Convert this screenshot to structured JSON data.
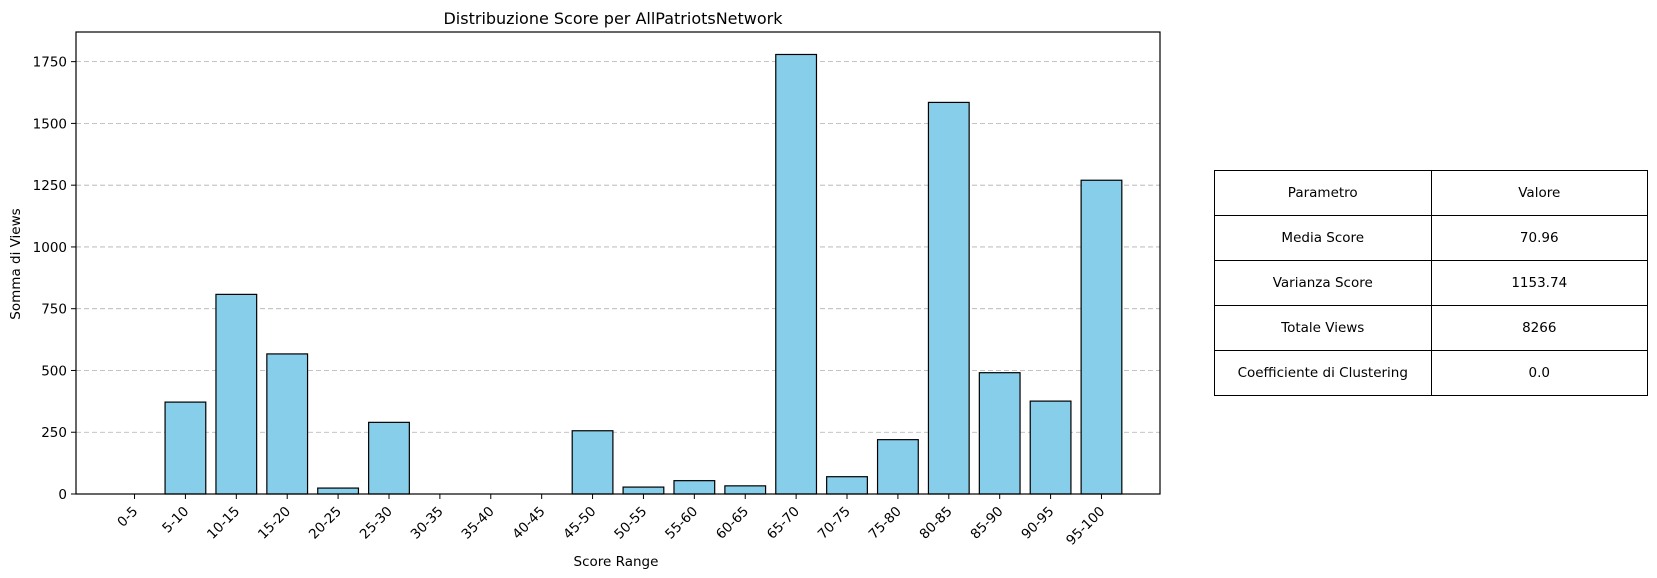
{
  "chart_data": {
    "type": "bar",
    "title": "Distribuzione Score per AllPatriotsNetwork",
    "xlabel": "Score Range",
    "ylabel": "Somma di Views",
    "categories": [
      "0-5",
      "5-10",
      "10-15",
      "15-20",
      "20-25",
      "25-30",
      "30-35",
      "35-40",
      "40-45",
      "45-50",
      "50-55",
      "55-60",
      "60-65",
      "65-70",
      "70-75",
      "75-80",
      "80-85",
      "85-90",
      "90-95",
      "95-100"
    ],
    "values": [
      0,
      372,
      808,
      567,
      24,
      290,
      0,
      0,
      0,
      256,
      28,
      54,
      33,
      1779,
      70,
      220,
      1585,
      491,
      376,
      1270
    ],
    "ylim": [
      0,
      1870
    ],
    "yticks": [
      0,
      250,
      500,
      750,
      1000,
      1250,
      1500,
      1750
    ],
    "grid": "y-dashed",
    "bar_color": "#87ceeb",
    "edge_color": "#000000"
  },
  "table": {
    "header": [
      "Parametro",
      "Valore"
    ],
    "rows": [
      [
        "Media Score",
        "70.96"
      ],
      [
        "Varianza Score",
        "1153.74"
      ],
      [
        "Totale Views",
        "8266"
      ],
      [
        "Coefficiente di Clustering",
        "0.0"
      ]
    ]
  }
}
